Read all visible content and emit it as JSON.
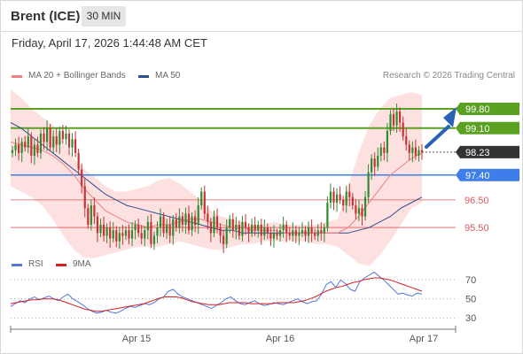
{
  "header": {
    "instrument": "Brent (ICE)",
    "timeframe": "30 MIN",
    "datetime": "Friday, April 17, 2026 1:44:48 AM CET"
  },
  "legend": {
    "ma20": "MA 20 + Bollinger Bands",
    "ma50": "MA 50",
    "credit": "Research © 2026 Trading Central",
    "rsi": "RSI",
    "ma9": "9MA"
  },
  "colors": {
    "ma20": "#f08080",
    "ma50": "#2f4f8f",
    "bands": "#fde0e0",
    "resistance": "#5aa021",
    "current": "#333333",
    "pivot": "#3d7eea",
    "support": "#e05a5a",
    "candle_up": "#2e8b2e",
    "candle_down": "#c83232",
    "rsi": "#5577dd",
    "rsi_ma": "#d62020",
    "arrow": "#2a62b5"
  },
  "chart_data": [
    {
      "type": "candlestick",
      "ylim": [
        94.7,
        100.6
      ],
      "x_tick_labels": [
        "Apr 15",
        "Apr 16",
        "Apr 17"
      ],
      "price_levels": [
        {
          "label": "99.80",
          "value": 99.8,
          "kind": "resistance"
        },
        {
          "label": "99.10",
          "value": 99.1,
          "kind": "resistance"
        },
        {
          "label": "98.23",
          "value": 98.23,
          "kind": "current"
        },
        {
          "label": "97.40",
          "value": 97.4,
          "kind": "pivot"
        },
        {
          "label": "96.50",
          "value": 96.5,
          "kind": "support"
        },
        {
          "label": "95.50",
          "value": 95.5,
          "kind": "support"
        }
      ],
      "close": [
        98.3,
        98.5,
        98.2,
        98.6,
        98.4,
        98.8,
        98.1,
        98.5,
        98.2,
        98.9,
        98.6,
        99.1,
        98.4,
        98.8,
        98.5,
        99.0,
        98.7,
        98.9,
        98.4,
        98.7,
        98.2,
        97.6,
        97.0,
        96.2,
        95.6,
        96.3,
        95.9,
        95.3,
        95.6,
        95.2,
        95.5,
        95.1,
        95.4,
        95.0,
        95.3,
        95.2,
        95.4,
        95.1,
        95.4,
        95.6,
        95.3,
        95.1,
        95.4,
        95.7,
        94.9,
        95.2,
        95.5,
        95.9,
        95.3,
        95.6,
        95.2,
        95.8,
        95.5,
        95.9,
        95.6,
        96.0,
        95.4,
        95.9,
        95.6,
        96.3,
        96.8,
        96.0,
        95.7,
        95.3,
        95.9,
        95.5,
        95.2,
        94.9,
        95.5,
        95.8,
        95.4,
        95.6,
        95.2,
        95.7,
        95.5,
        95.3,
        95.6,
        95.4,
        95.6,
        95.2,
        95.5,
        95.3,
        95.1,
        95.3,
        95.2,
        95.4,
        95.6,
        95.3,
        95.2,
        95.4,
        95.2,
        95.3,
        95.4,
        95.2,
        95.5,
        95.3,
        95.2,
        95.4,
        95.3,
        95.5,
        96.4,
        96.8,
        96.4,
        96.7,
        96.5,
        96.3,
        96.8,
        96.6,
        96.3,
        96.0,
        96.2,
        95.9,
        96.6,
        97.5,
        98.0,
        97.7,
        98.1,
        98.4,
        98.2,
        99.0,
        99.6,
        99.2,
        99.7,
        99.3,
        98.8,
        98.5,
        98.2,
        98.4,
        98.1,
        98.3,
        98.23
      ],
      "ma20": [
        98.6,
        98.5,
        98.4,
        98.3,
        98.1,
        97.8,
        97.4,
        96.9,
        96.5,
        96.1,
        95.9,
        95.7,
        95.6,
        95.5,
        95.6,
        95.6,
        95.7,
        95.8,
        95.8,
        95.7,
        95.6,
        95.5,
        95.5,
        95.4,
        95.4,
        95.4,
        95.3,
        95.3,
        95.3,
        95.3,
        95.3,
        95.3,
        95.5,
        95.9,
        96.4,
        96.9,
        97.4,
        97.7,
        98.0,
        98.2
      ],
      "ma50": [
        99.3,
        99.1,
        98.8,
        98.5,
        98.2,
        97.9,
        97.6,
        97.3,
        97.0,
        96.7,
        96.5,
        96.3,
        96.2,
        96.1,
        96.0,
        95.9,
        95.8,
        95.7,
        95.6,
        95.5,
        95.4,
        95.4,
        95.3,
        95.3,
        95.3,
        95.3,
        95.3,
        95.3,
        95.3,
        95.3,
        95.3,
        95.3,
        95.3,
        95.4,
        95.5,
        95.7,
        95.9,
        96.2,
        96.4,
        96.6
      ],
      "bb_upper": [
        100.5,
        100.2,
        99.8,
        99.5,
        99.2,
        98.6,
        98.0,
        97.6,
        97.3,
        97.0,
        96.8,
        96.8,
        96.9,
        97.0,
        97.2,
        97.3,
        97.1,
        96.8,
        96.5,
        96.1,
        95.9,
        95.8,
        95.7,
        95.6,
        95.6,
        95.7,
        95.6,
        95.6,
        95.6,
        95.6,
        95.7,
        95.8,
        97.0,
        98.2,
        99.2,
        99.8,
        100.2,
        100.3,
        100.4,
        100.3
      ],
      "bb_lower": [
        97.0,
        96.8,
        96.6,
        96.3,
        95.8,
        95.2,
        94.7,
        94.4,
        94.4,
        94.5,
        94.6,
        94.7,
        94.8,
        94.8,
        94.8,
        94.9,
        95.0,
        94.9,
        94.8,
        94.7,
        94.7,
        94.8,
        94.9,
        94.9,
        95.0,
        95.0,
        95.0,
        95.0,
        95.0,
        94.9,
        94.9,
        94.8,
        94.5,
        94.2,
        94.1,
        94.5,
        95.0,
        95.6,
        96.2,
        96.4
      ]
    },
    {
      "type": "line",
      "ylim": [
        20,
        85
      ],
      "y_tick_labels": [
        "70",
        "50",
        "30"
      ],
      "rsi": [
        42,
        45,
        48,
        46,
        50,
        52,
        49,
        51,
        53,
        50,
        48,
        52,
        55,
        50,
        47,
        44,
        40,
        37,
        35,
        36,
        38,
        36,
        35,
        37,
        40,
        42,
        41,
        43,
        45,
        44,
        46,
        50,
        52,
        58,
        60,
        55,
        52,
        50,
        48,
        46,
        44,
        42,
        40,
        43,
        46,
        50,
        52,
        48,
        45,
        44,
        46,
        48,
        45,
        43,
        44,
        46,
        45,
        44,
        46,
        48,
        50,
        47,
        45,
        47,
        48,
        55,
        65,
        68,
        62,
        70,
        66,
        60,
        58,
        68,
        72,
        75,
        78,
        74,
        70,
        65,
        60,
        55,
        56,
        54,
        53,
        56,
        55
      ],
      "rsi_ma9": [
        45,
        46,
        47,
        48,
        49,
        49,
        50,
        50,
        50,
        49,
        47,
        45,
        43,
        41,
        39,
        38,
        37,
        37,
        38,
        39,
        40,
        41,
        42,
        43,
        44,
        45,
        47,
        49,
        51,
        52,
        52,
        52,
        51,
        49,
        47,
        46,
        45,
        44,
        44,
        44,
        45,
        46,
        46,
        46,
        46,
        45,
        45,
        45,
        45,
        45,
        46,
        46,
        46,
        46,
        47,
        48,
        50,
        52,
        55,
        58,
        60,
        62,
        63,
        65,
        67,
        68,
        70,
        71,
        72,
        72,
        71,
        70,
        68,
        66,
        64,
        62,
        60,
        58
      ]
    }
  ]
}
